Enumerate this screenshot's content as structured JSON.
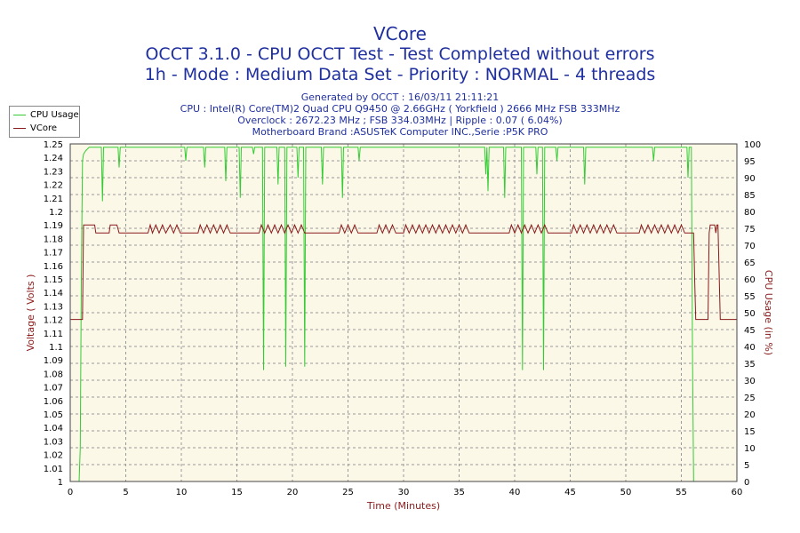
{
  "header": {
    "title": "VCore",
    "subtitle1": "OCCT 3.1.0 - CPU OCCT Test - Test Completed without errors",
    "subtitle2": "1h - Mode : Medium Data Set - Priority : NORMAL - 4 threads",
    "info1": "Generated by OCCT : 16/03/11 21:11:21",
    "info2": "CPU : Intel(R) Core(TM)2 Quad CPU Q9450 @ 2.66GHz ( Yorkfield ) 2666 MHz FSB 333MHz",
    "info3": "Overclock : 2672.23 MHz ; FSB 334.03MHz | Ripple : 0.07 ( 6.04%)",
    "info4": "Motherboard Brand :ASUSTeK Computer INC.,Serie :P5K PRO"
  },
  "colors": {
    "cpu_usage": "#33cc33",
    "vcore": "#8b1a1a",
    "plot_bg": "#fbf8e8",
    "grid": "#999999",
    "text": "#1f2f9f"
  },
  "chart_data": {
    "type": "line",
    "xlabel": "Time (Minutes)",
    "ylabel_left": "Voltage ( Volts )",
    "ylabel_right": "CPU Usage (in %)",
    "xlim": [
      0,
      60
    ],
    "ylim_left": [
      1,
      1.25
    ],
    "ylim_right": [
      0,
      100
    ],
    "x_ticks": [
      0,
      5,
      10,
      15,
      20,
      25,
      30,
      35,
      40,
      45,
      50,
      55,
      60
    ],
    "y_left_ticks": [
      "1",
      "1.01",
      "1.02",
      "1.03",
      "1.04",
      "1.05",
      "1.06",
      "1.07",
      "1.08",
      "1.09",
      "1.1",
      "1.11",
      "1.12",
      "1.13",
      "1.14",
      "1.15",
      "1.16",
      "1.17",
      "1.18",
      "1.19",
      "1.2",
      "1.21",
      "1.22",
      "1.23",
      "1.24",
      "1.25"
    ],
    "y_right_ticks": [
      0,
      5,
      10,
      15,
      20,
      25,
      30,
      35,
      40,
      45,
      50,
      55,
      60,
      65,
      70,
      75,
      80,
      85,
      90,
      95,
      100
    ],
    "grid": true,
    "legend": "top-left",
    "series": [
      {
        "name": "CPU Usage",
        "axis": "right",
        "points": [
          [
            0,
            0
          ],
          [
            0.8,
            0
          ],
          [
            0.9,
            10
          ],
          [
            1.0,
            60
          ],
          [
            1.1,
            95
          ],
          [
            1.2,
            97
          ],
          [
            1.4,
            98
          ],
          [
            1.7,
            99
          ],
          [
            2.2,
            99
          ],
          [
            2.8,
            99
          ],
          [
            2.9,
            83
          ],
          [
            3.0,
            99
          ],
          [
            4.3,
            99
          ],
          [
            4.4,
            93
          ],
          [
            4.5,
            99
          ],
          [
            7.0,
            99
          ],
          [
            8.0,
            99
          ],
          [
            10.3,
            99
          ],
          [
            10.4,
            95
          ],
          [
            10.5,
            99
          ],
          [
            12.0,
            99
          ],
          [
            12.1,
            93
          ],
          [
            12.2,
            99
          ],
          [
            13.9,
            99
          ],
          [
            14.0,
            89
          ],
          [
            14.1,
            99
          ],
          [
            15.2,
            99
          ],
          [
            15.3,
            84
          ],
          [
            15.4,
            99
          ],
          [
            16.4,
            99
          ],
          [
            16.5,
            97
          ],
          [
            16.6,
            99
          ],
          [
            17.3,
            99
          ],
          [
            17.4,
            33
          ],
          [
            17.5,
            99
          ],
          [
            18.6,
            99
          ],
          [
            18.7,
            88
          ],
          [
            18.8,
            99
          ],
          [
            19.3,
            99
          ],
          [
            19.4,
            34
          ],
          [
            19.5,
            99
          ],
          [
            20.0,
            99
          ],
          [
            20.1,
            99
          ],
          [
            20.2,
            99
          ],
          [
            20.4,
            99
          ],
          [
            20.5,
            90
          ],
          [
            20.6,
            99
          ],
          [
            21.0,
            99
          ],
          [
            21.1,
            34
          ],
          [
            21.2,
            99
          ],
          [
            22.6,
            99
          ],
          [
            22.7,
            88
          ],
          [
            22.8,
            99
          ],
          [
            24.4,
            99
          ],
          [
            24.5,
            84
          ],
          [
            24.6,
            99
          ],
          [
            25.9,
            99
          ],
          [
            26.0,
            95
          ],
          [
            26.1,
            99
          ],
          [
            30.0,
            99
          ],
          [
            35.0,
            99
          ],
          [
            37.3,
            99
          ],
          [
            37.4,
            91
          ],
          [
            37.5,
            99
          ],
          [
            37.6,
            86
          ],
          [
            37.7,
            99
          ],
          [
            39.0,
            99
          ],
          [
            39.1,
            84
          ],
          [
            39.2,
            99
          ],
          [
            40.6,
            99
          ],
          [
            40.7,
            33
          ],
          [
            40.8,
            99
          ],
          [
            41.9,
            99
          ],
          [
            42.0,
            91
          ],
          [
            42.1,
            99
          ],
          [
            42.5,
            99
          ],
          [
            42.6,
            33
          ],
          [
            42.7,
            99
          ],
          [
            43.7,
            99
          ],
          [
            43.8,
            95
          ],
          [
            43.9,
            99
          ],
          [
            45.0,
            99
          ],
          [
            46.2,
            99
          ],
          [
            46.3,
            88
          ],
          [
            46.4,
            99
          ],
          [
            48.0,
            99
          ],
          [
            50.0,
            99
          ],
          [
            52.4,
            99
          ],
          [
            52.5,
            95
          ],
          [
            52.6,
            99
          ],
          [
            55.5,
            99
          ],
          [
            55.6,
            90
          ],
          [
            55.7,
            99
          ],
          [
            55.9,
            99
          ],
          [
            56.0,
            40
          ],
          [
            56.1,
            0
          ],
          [
            60,
            0
          ]
        ]
      },
      {
        "name": "VCore",
        "axis": "left",
        "points": [
          [
            0,
            1.12
          ],
          [
            1.1,
            1.12
          ],
          [
            1.2,
            1.19
          ],
          [
            2.2,
            1.19
          ],
          [
            2.3,
            1.184
          ],
          [
            3.5,
            1.184
          ],
          [
            3.6,
            1.19
          ],
          [
            4.2,
            1.19
          ],
          [
            4.4,
            1.184
          ],
          [
            7.0,
            1.184
          ],
          [
            7.2,
            1.19
          ],
          [
            7.4,
            1.184
          ],
          [
            7.7,
            1.19
          ],
          [
            8.0,
            1.184
          ],
          [
            8.3,
            1.19
          ],
          [
            8.6,
            1.184
          ],
          [
            9.0,
            1.19
          ],
          [
            9.3,
            1.184
          ],
          [
            9.6,
            1.19
          ],
          [
            9.9,
            1.184
          ],
          [
            11.5,
            1.184
          ],
          [
            11.7,
            1.19
          ],
          [
            12.0,
            1.184
          ],
          [
            12.3,
            1.19
          ],
          [
            12.6,
            1.184
          ],
          [
            12.9,
            1.19
          ],
          [
            13.2,
            1.184
          ],
          [
            13.5,
            1.19
          ],
          [
            13.8,
            1.184
          ],
          [
            14.1,
            1.19
          ],
          [
            14.4,
            1.184
          ],
          [
            17.0,
            1.184
          ],
          [
            17.2,
            1.19
          ],
          [
            17.5,
            1.184
          ],
          [
            17.8,
            1.19
          ],
          [
            18.1,
            1.184
          ],
          [
            18.4,
            1.19
          ],
          [
            18.7,
            1.184
          ],
          [
            19.0,
            1.19
          ],
          [
            19.3,
            1.184
          ],
          [
            19.6,
            1.19
          ],
          [
            19.9,
            1.184
          ],
          [
            20.2,
            1.19
          ],
          [
            20.5,
            1.184
          ],
          [
            20.8,
            1.19
          ],
          [
            21.1,
            1.184
          ],
          [
            24.2,
            1.184
          ],
          [
            24.4,
            1.19
          ],
          [
            24.7,
            1.184
          ],
          [
            25.0,
            1.19
          ],
          [
            25.3,
            1.184
          ],
          [
            25.6,
            1.19
          ],
          [
            25.9,
            1.184
          ],
          [
            27.6,
            1.184
          ],
          [
            27.8,
            1.19
          ],
          [
            28.1,
            1.184
          ],
          [
            28.4,
            1.19
          ],
          [
            28.7,
            1.184
          ],
          [
            29.0,
            1.19
          ],
          [
            29.3,
            1.184
          ],
          [
            30.0,
            1.184
          ],
          [
            30.2,
            1.19
          ],
          [
            30.5,
            1.184
          ],
          [
            30.8,
            1.19
          ],
          [
            31.1,
            1.184
          ],
          [
            31.4,
            1.19
          ],
          [
            31.7,
            1.184
          ],
          [
            32.0,
            1.19
          ],
          [
            32.3,
            1.184
          ],
          [
            32.6,
            1.19
          ],
          [
            32.9,
            1.184
          ],
          [
            33.2,
            1.19
          ],
          [
            33.5,
            1.184
          ],
          [
            33.8,
            1.19
          ],
          [
            34.1,
            1.184
          ],
          [
            34.4,
            1.19
          ],
          [
            34.7,
            1.184
          ],
          [
            35.0,
            1.19
          ],
          [
            35.3,
            1.184
          ],
          [
            35.6,
            1.19
          ],
          [
            35.9,
            1.184
          ],
          [
            39.5,
            1.184
          ],
          [
            39.7,
            1.19
          ],
          [
            40.0,
            1.184
          ],
          [
            40.3,
            1.19
          ],
          [
            40.6,
            1.184
          ],
          [
            40.9,
            1.19
          ],
          [
            41.2,
            1.184
          ],
          [
            41.5,
            1.19
          ],
          [
            41.8,
            1.184
          ],
          [
            42.1,
            1.19
          ],
          [
            42.4,
            1.184
          ],
          [
            42.7,
            1.19
          ],
          [
            43.0,
            1.184
          ],
          [
            45.1,
            1.184
          ],
          [
            45.3,
            1.19
          ],
          [
            45.6,
            1.184
          ],
          [
            45.9,
            1.19
          ],
          [
            46.2,
            1.184
          ],
          [
            46.5,
            1.19
          ],
          [
            46.8,
            1.184
          ],
          [
            47.1,
            1.19
          ],
          [
            47.4,
            1.184
          ],
          [
            47.7,
            1.19
          ],
          [
            48.0,
            1.184
          ],
          [
            48.3,
            1.19
          ],
          [
            48.6,
            1.184
          ],
          [
            48.9,
            1.19
          ],
          [
            49.2,
            1.184
          ],
          [
            51.2,
            1.184
          ],
          [
            51.4,
            1.19
          ],
          [
            51.7,
            1.184
          ],
          [
            52.0,
            1.19
          ],
          [
            52.3,
            1.184
          ],
          [
            52.6,
            1.19
          ],
          [
            52.9,
            1.184
          ],
          [
            53.2,
            1.19
          ],
          [
            53.5,
            1.184
          ],
          [
            53.8,
            1.19
          ],
          [
            54.1,
            1.184
          ],
          [
            54.4,
            1.19
          ],
          [
            54.7,
            1.184
          ],
          [
            55.0,
            1.19
          ],
          [
            55.3,
            1.184
          ],
          [
            56.1,
            1.184
          ],
          [
            56.2,
            1.15
          ],
          [
            56.3,
            1.12
          ],
          [
            57.4,
            1.12
          ],
          [
            57.5,
            1.184
          ],
          [
            57.6,
            1.19
          ],
          [
            58.0,
            1.19
          ],
          [
            58.1,
            1.184
          ],
          [
            58.2,
            1.19
          ],
          [
            58.3,
            1.19
          ],
          [
            58.5,
            1.12
          ],
          [
            60,
            1.12
          ]
        ]
      }
    ]
  }
}
